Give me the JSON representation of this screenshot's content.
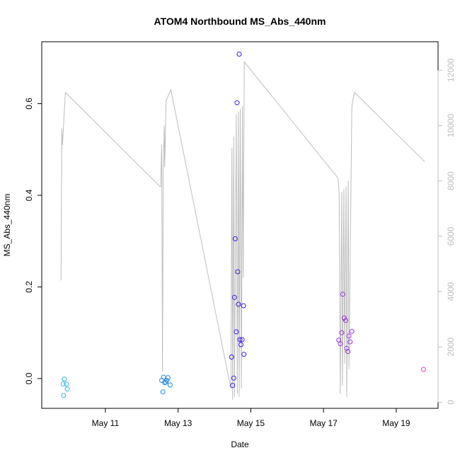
{
  "chart_data": {
    "type": "scatter",
    "title": "ATOM4 Northbound MS_Abs_440nm",
    "xlabel": "Date",
    "ylabel": "MS_Abs_440nm",
    "xlim": [
      9.25,
      20.15
    ],
    "ylim": [
      -0.065,
      0.735
    ],
    "x_ticks": [
      {
        "value": 11,
        "label": "May 11"
      },
      {
        "value": 13,
        "label": "May 13"
      },
      {
        "value": 15,
        "label": "May 15"
      },
      {
        "value": 17,
        "label": "May 17"
      },
      {
        "value": 19,
        "label": "May 19"
      }
    ],
    "y_ticks": [
      {
        "value": 0.0,
        "label": "0.0"
      },
      {
        "value": 0.2,
        "label": "0.2"
      },
      {
        "value": 0.4,
        "label": "0.4"
      },
      {
        "value": 0.6,
        "label": "0.6"
      }
    ],
    "y2lim": [
      -220,
      13030
    ],
    "y2_ticks": [
      {
        "value": 0,
        "label": "0"
      },
      {
        "value": 2000,
        "label": "2000"
      },
      {
        "value": 4000,
        "label": "4000"
      },
      {
        "value": 6000,
        "label": "6000"
      },
      {
        "value": 8000,
        "label": "8000"
      },
      {
        "value": 10000,
        "label": "10000"
      },
      {
        "value": 12000,
        "label": "12000"
      }
    ],
    "points": [
      {
        "x": 9.84,
        "y": -0.012,
        "color": "#33b5e5"
      },
      {
        "x": 9.87,
        "y": -0.001,
        "color": "#33b5e5"
      },
      {
        "x": 9.93,
        "y": -0.012,
        "color": "#33b5e5"
      },
      {
        "x": 9.95,
        "y": -0.023,
        "color": "#33b5e5"
      },
      {
        "x": 9.85,
        "y": -0.037,
        "color": "#33b5e5"
      },
      {
        "x": 12.55,
        "y": -0.004,
        "color": "#1e88e5"
      },
      {
        "x": 12.6,
        "y": 0.003,
        "color": "#1e88e5"
      },
      {
        "x": 12.63,
        "y": -0.009,
        "color": "#1e88e5"
      },
      {
        "x": 12.66,
        "y": -0.008,
        "color": "#1e88e5"
      },
      {
        "x": 12.69,
        "y": -0.004,
        "color": "#1e88e5"
      },
      {
        "x": 12.72,
        "y": 0.002,
        "color": "#1e88e5"
      },
      {
        "x": 12.78,
        "y": -0.014,
        "color": "#1e88e5"
      },
      {
        "x": 12.58,
        "y": -0.029,
        "color": "#1e88e5"
      },
      {
        "x": 14.47,
        "y": 0.047,
        "color": "#3b1fe0"
      },
      {
        "x": 14.5,
        "y": -0.015,
        "color": "#3b1fe0"
      },
      {
        "x": 14.53,
        "y": 0.001,
        "color": "#3b1fe0"
      },
      {
        "x": 14.55,
        "y": 0.177,
        "color": "#3b1fe0"
      },
      {
        "x": 14.57,
        "y": 0.305,
        "color": "#3b1fe0"
      },
      {
        "x": 14.6,
        "y": 0.102,
        "color": "#3b1fe0"
      },
      {
        "x": 14.62,
        "y": 0.602,
        "color": "#3b1fe0"
      },
      {
        "x": 14.64,
        "y": 0.233,
        "color": "#3b1fe0"
      },
      {
        "x": 14.66,
        "y": 0.162,
        "color": "#3b1fe0"
      },
      {
        "x": 14.68,
        "y": 0.708,
        "color": "#3b1fe0"
      },
      {
        "x": 14.7,
        "y": 0.085,
        "color": "#3b1fe0"
      },
      {
        "x": 14.73,
        "y": 0.074,
        "color": "#3b1fe0"
      },
      {
        "x": 14.76,
        "y": 0.085,
        "color": "#3b1fe0"
      },
      {
        "x": 14.8,
        "y": 0.159,
        "color": "#3b1fe0"
      },
      {
        "x": 14.81,
        "y": 0.053,
        "color": "#3b1fe0"
      },
      {
        "x": 17.42,
        "y": 0.084,
        "color": "#9b2fd9"
      },
      {
        "x": 17.46,
        "y": 0.076,
        "color": "#9b2fd9"
      },
      {
        "x": 17.5,
        "y": 0.1,
        "color": "#9b2fd9"
      },
      {
        "x": 17.53,
        "y": 0.184,
        "color": "#9b2fd9"
      },
      {
        "x": 17.57,
        "y": 0.132,
        "color": "#9b2fd9"
      },
      {
        "x": 17.61,
        "y": 0.127,
        "color": "#9b2fd9"
      },
      {
        "x": 17.64,
        "y": 0.066,
        "color": "#9b2fd9"
      },
      {
        "x": 17.67,
        "y": 0.059,
        "color": "#9b2fd9"
      },
      {
        "x": 17.7,
        "y": 0.093,
        "color": "#9b2fd9"
      },
      {
        "x": 17.73,
        "y": 0.08,
        "color": "#9b2fd9"
      },
      {
        "x": 17.78,
        "y": 0.103,
        "color": "#9b2fd9"
      },
      {
        "x": 19.75,
        "y": 0.02,
        "color": "#e040c0"
      }
    ],
    "secondary_series": {
      "name": "gray line (right axis)",
      "color": "#bdbdbd",
      "points": [
        [
          9.78,
          4400
        ],
        [
          9.8,
          9900
        ],
        [
          9.82,
          9300
        ],
        [
          9.85,
          10000
        ],
        [
          9.9,
          11200
        ],
        [
          12.5,
          7800
        ],
        [
          12.52,
          7800
        ],
        [
          12.55,
          9300
        ],
        [
          12.57,
          1100
        ],
        [
          12.59,
          8300
        ],
        [
          12.62,
          10000
        ],
        [
          12.63,
          8500
        ],
        [
          12.67,
          10900
        ],
        [
          12.8,
          11300
        ],
        [
          14.45,
          500
        ],
        [
          14.48,
          9200
        ],
        [
          14.5,
          100
        ],
        [
          14.53,
          9600
        ],
        [
          14.55,
          200
        ],
        [
          14.6,
          10400
        ],
        [
          14.63,
          300
        ],
        [
          14.66,
          10500
        ],
        [
          14.68,
          200
        ],
        [
          14.71,
          10600
        ],
        [
          14.74,
          500
        ],
        [
          14.77,
          10700
        ],
        [
          14.79,
          4500
        ],
        [
          14.82,
          12300
        ],
        [
          17.4,
          8100
        ],
        [
          17.43,
          7500
        ],
        [
          17.46,
          300
        ],
        [
          17.5,
          7600
        ],
        [
          17.52,
          600
        ],
        [
          17.56,
          7700
        ],
        [
          17.58,
          1400
        ],
        [
          17.62,
          7800
        ],
        [
          17.64,
          200
        ],
        [
          17.68,
          8000
        ],
        [
          17.7,
          1200
        ],
        [
          17.78,
          10700
        ],
        [
          17.85,
          11200
        ],
        [
          19.78,
          8700
        ]
      ]
    }
  }
}
